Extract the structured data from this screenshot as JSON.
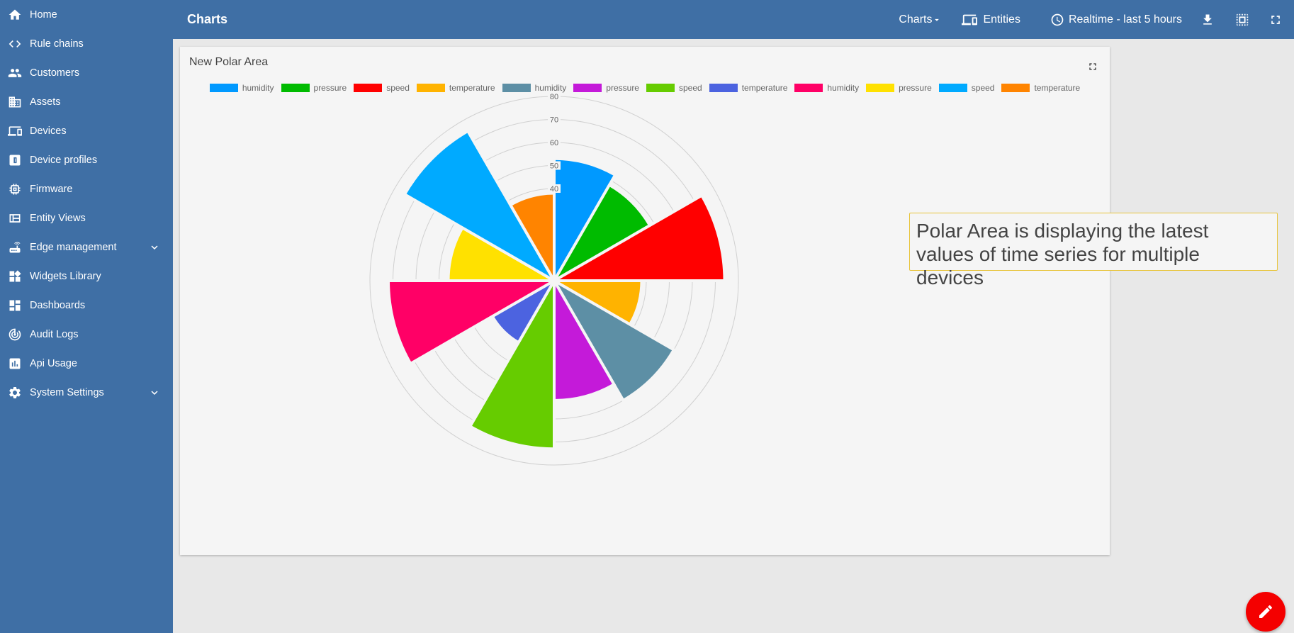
{
  "sidebar": {
    "items": [
      {
        "label": "Home",
        "icon": "home-icon"
      },
      {
        "label": "Rule chains",
        "icon": "code-arrows-icon"
      },
      {
        "label": "Customers",
        "icon": "people-icon"
      },
      {
        "label": "Assets",
        "icon": "building-icon"
      },
      {
        "label": "Devices",
        "icon": "devices-icon"
      },
      {
        "label": "Device profiles",
        "icon": "device-profile-icon"
      },
      {
        "label": "Firmware",
        "icon": "chip-icon"
      },
      {
        "label": "Entity Views",
        "icon": "view-quilt-icon"
      },
      {
        "label": "Edge management",
        "icon": "router-icon",
        "expandable": true
      },
      {
        "label": "Widgets Library",
        "icon": "widgets-icon"
      },
      {
        "label": "Dashboards",
        "icon": "dashboard-icon"
      },
      {
        "label": "Audit Logs",
        "icon": "track-changes-icon"
      },
      {
        "label": "Api Usage",
        "icon": "insert-chart-icon"
      },
      {
        "label": "System Settings",
        "icon": "settings-icon",
        "expandable": true
      }
    ]
  },
  "topbar": {
    "title": "Charts",
    "charts_menu": "Charts",
    "entities": "Entities",
    "timewindow": "Realtime - last 5 hours"
  },
  "widget": {
    "title": "New Polar Area"
  },
  "tooltip": {
    "text": "Polar Area is displaying the latest values of time series for multiple devices"
  },
  "colors": {
    "header": "#3f6fa5",
    "fab": "#f40000"
  },
  "chart_data": {
    "type": "polar-area",
    "title": "New Polar Area",
    "r_ticks": [
      40,
      50,
      60,
      70,
      80
    ],
    "r_max": 80,
    "series": [
      {
        "name": "humidity",
        "color": "#0099ff",
        "value": 53
      },
      {
        "name": "pressure",
        "color": "#00bb00",
        "value": 48
      },
      {
        "name": "speed",
        "color": "#ff0000",
        "value": 74
      },
      {
        "name": "temperature",
        "color": "#ffb300",
        "value": 38
      },
      {
        "name": "humidity",
        "color": "#5d8fa5",
        "value": 60
      },
      {
        "name": "pressure",
        "color": "#c41ad9",
        "value": 52
      },
      {
        "name": "speed",
        "color": "#66cc00",
        "value": 73
      },
      {
        "name": "temperature",
        "color": "#4c63e0",
        "value": 31
      },
      {
        "name": "humidity",
        "color": "#ff0066",
        "value": 72
      },
      {
        "name": "pressure",
        "color": "#ffe100",
        "value": 46
      },
      {
        "name": "speed",
        "color": "#00aaff",
        "value": 75
      },
      {
        "name": "temperature",
        "color": "#ff8400",
        "value": 38
      }
    ]
  }
}
